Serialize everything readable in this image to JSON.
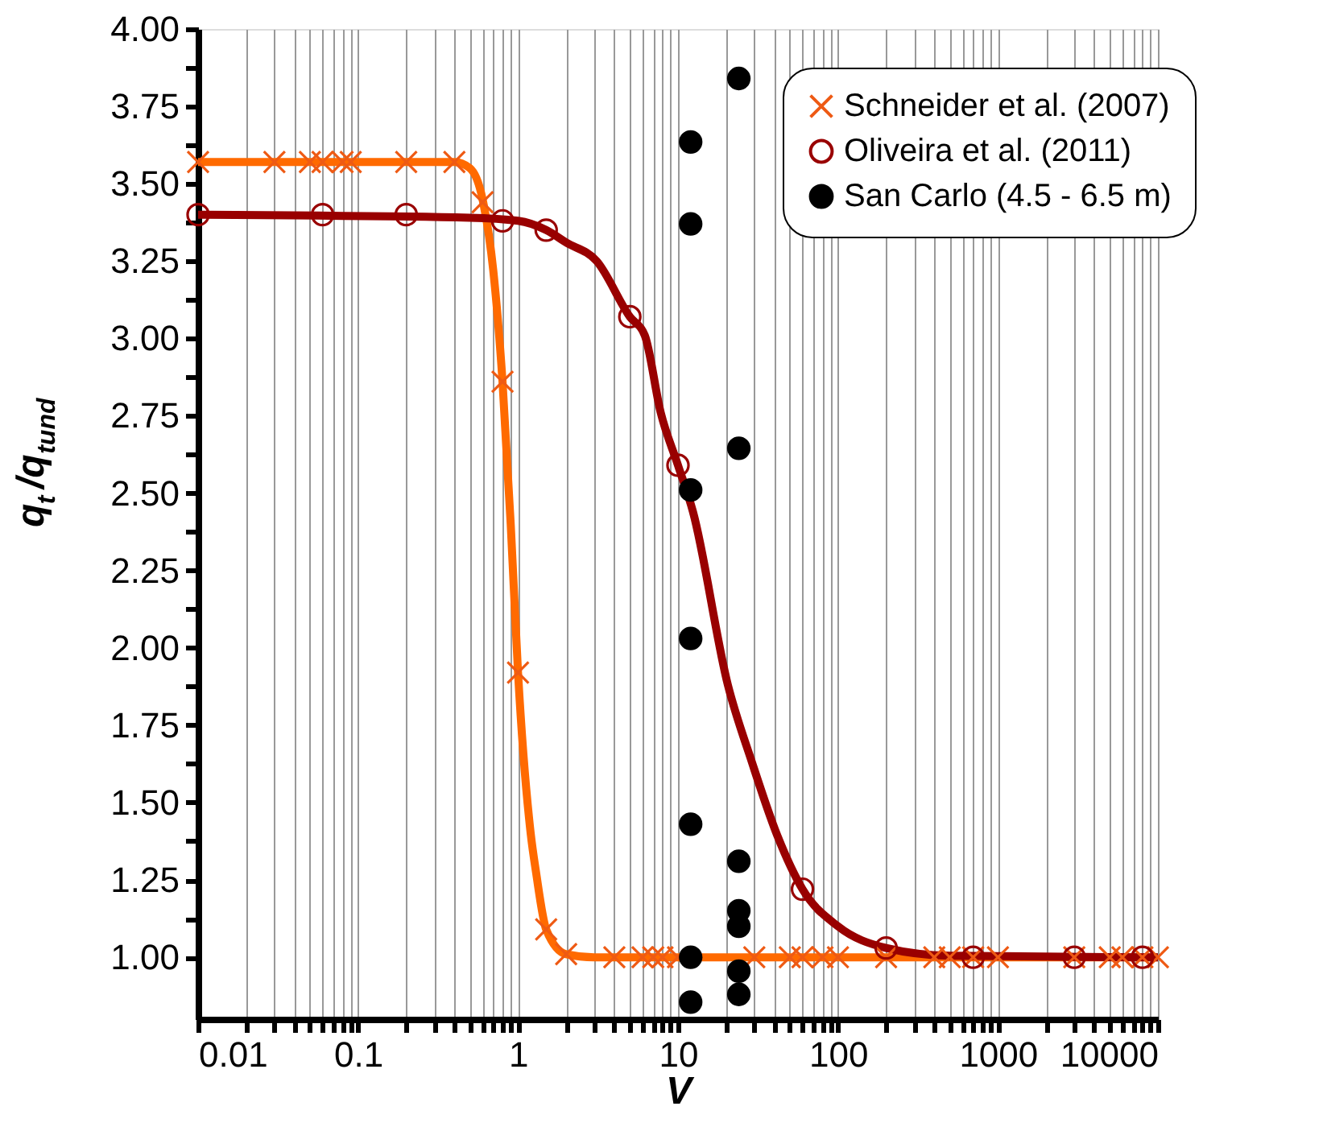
{
  "chart_data": {
    "type": "line",
    "xlabel": "V",
    "ylabel": "q$_{t}$/q$_{tund}$",
    "log": "x",
    "grid": "x",
    "legend": "top right",
    "xlim": [
      0.01,
      10000
    ],
    "ylim": [
      0.8,
      4.0
    ],
    "xticks": [
      0.01,
      {
        "value": 0.02,
        "label": null
      },
      {
        "value": 0.03,
        "label": null
      },
      {
        "value": 0.04,
        "label": null
      },
      {
        "value": 0.05,
        "label": null
      },
      {
        "value": 0.06,
        "label": null
      },
      {
        "value": 0.07,
        "label": null
      },
      {
        "value": 0.08,
        "label": null
      },
      {
        "value": 0.09,
        "label": null
      },
      0.1,
      {
        "value": 0.2,
        "label": null
      },
      {
        "value": 0.3,
        "label": null
      },
      {
        "value": 0.4,
        "label": null
      },
      {
        "value": 0.5,
        "label": null
      },
      {
        "value": 0.6,
        "label": null
      },
      {
        "value": 0.7,
        "label": null
      },
      {
        "value": 0.8,
        "label": null
      },
      {
        "value": 0.9,
        "label": null
      },
      1,
      {
        "value": 2,
        "label": null
      },
      {
        "value": 3,
        "label": null
      },
      {
        "value": 4,
        "label": null
      },
      {
        "value": 5,
        "label": null
      },
      {
        "value": 6,
        "label": null
      },
      {
        "value": 7,
        "label": null
      },
      {
        "value": 8,
        "label": null
      },
      {
        "value": 9,
        "label": null
      },
      10,
      {
        "value": 20,
        "label": null
      },
      {
        "value": 30,
        "label": null
      },
      {
        "value": 40,
        "label": null
      },
      {
        "value": 50,
        "label": null
      },
      {
        "value": 60,
        "label": null
      },
      {
        "value": 70,
        "label": null
      },
      {
        "value": 80,
        "label": null
      },
      {
        "value": 90,
        "label": null
      },
      100,
      {
        "value": 200,
        "label": null
      },
      {
        "value": 300,
        "label": null
      },
      {
        "value": 400,
        "label": null
      },
      {
        "value": 500,
        "label": null
      },
      {
        "value": 600,
        "label": null
      },
      {
        "value": 700,
        "label": null
      },
      {
        "value": 800,
        "label": null
      },
      {
        "value": 900,
        "label": null
      },
      1000,
      {
        "value": 2000,
        "label": null
      },
      {
        "value": 3000,
        "label": null
      },
      {
        "value": 4000,
        "label": null
      },
      {
        "value": 5000,
        "label": null
      },
      {
        "value": 6000,
        "label": null
      },
      {
        "value": 7000,
        "label": null
      },
      {
        "value": 8000,
        "label": null
      },
      {
        "value": 9000,
        "label": null
      },
      10000
    ],
    "yticks": [
      {
        "value": 1,
        "label": "1.00"
      },
      {
        "value": 1.125,
        "label": null
      },
      {
        "value": 1.25,
        "label": "1.25"
      },
      {
        "value": 1.375,
        "label": null
      },
      {
        "value": 1.5,
        "label": "1.50"
      },
      {
        "value": 1.625,
        "label": null
      },
      {
        "value": 1.75,
        "label": "1.75"
      },
      {
        "value": 1.875,
        "label": null
      },
      {
        "value": 2,
        "label": "2.00"
      },
      {
        "value": 2.125,
        "label": null
      },
      {
        "value": 2.25,
        "label": "2.25"
      },
      {
        "value": 2.375,
        "label": null
      },
      {
        "value": 2.5,
        "label": "2.50"
      },
      {
        "value": 2.625,
        "label": null
      },
      {
        "value": 2.75,
        "label": "2.75"
      },
      {
        "value": 2.875,
        "label": null
      },
      {
        "value": 3,
        "label": "3.00"
      },
      {
        "value": 3.125,
        "label": null
      },
      {
        "value": 3.25,
        "label": "3.25"
      },
      {
        "value": 3.375,
        "label": null
      },
      {
        "value": 3.5,
        "label": "3.50"
      },
      {
        "value": 3.625,
        "label": null
      },
      {
        "value": 3.75,
        "label": "3.75"
      },
      {
        "value": 3.875,
        "label": null
      },
      {
        "value": 4,
        "label": "4.00"
      }
    ],
    "series": [
      {
        "type": "line",
        "color": "#ff6a00",
        "marker": "none",
        "x": [
          0.01,
          0.1,
          0.4,
          0.5,
          0.6,
          0.7,
          0.8,
          0.9,
          1.0,
          1.2,
          1.3,
          1.5,
          2,
          3,
          10,
          10000
        ],
        "values": [
          3.57,
          3.57,
          3.57,
          3.55,
          3.45,
          3.22,
          2.86,
          2.4,
          1.92,
          1.4,
          1.27,
          1.09,
          1.01,
          1.0,
          1.0,
          1.0
        ]
      },
      {
        "type": "line",
        "color": "#990000",
        "marker": "none",
        "x": [
          0.01,
          0.5,
          1,
          1.5,
          2,
          3.1,
          5,
          6.2,
          7.8,
          10,
          12.4,
          20.5,
          29,
          42,
          60,
          100,
          200,
          500,
          10000
        ],
        "values": [
          3.4,
          3.39,
          3.38,
          3.35,
          3.31,
          3.25,
          3.07,
          3.01,
          2.76,
          2.59,
          2.44,
          1.88,
          1.63,
          1.39,
          1.22,
          1.1,
          1.03,
          1.005,
          1.0
        ]
      },
      {
        "name": "Schneider et al. (2007)",
        "type": "scatter",
        "marker": "cross",
        "color": "#ee5a14",
        "x": [
          0.01,
          0.03,
          0.05,
          0.06,
          0.08,
          0.09,
          0.2,
          0.4,
          0.6,
          0.8,
          1.0,
          1.5,
          2,
          4,
          6,
          7,
          8,
          10,
          30,
          50,
          60,
          80,
          100,
          200,
          400,
          500,
          700,
          1000,
          3000,
          5000,
          6000,
          8000,
          10000
        ],
        "values": [
          3.57,
          3.57,
          3.57,
          3.57,
          3.57,
          3.57,
          3.57,
          3.57,
          3.44,
          2.86,
          1.92,
          1.09,
          1.01,
          1.0,
          1.0,
          1.0,
          1.0,
          1.0,
          1.0,
          1.0,
          1.0,
          1.0,
          1.0,
          1.0,
          1.0,
          1.0,
          1.0,
          1.0,
          1.0,
          1.0,
          1.0,
          1.0,
          1.0
        ]
      },
      {
        "name": "Oliveira et al. (2011)",
        "type": "scatter",
        "marker": "circle",
        "color": "#990000",
        "x": [
          0.01,
          0.06,
          0.2,
          0.8,
          1.5,
          5,
          10,
          60,
          200,
          700,
          3000,
          8000
        ],
        "values": [
          3.4,
          3.4,
          3.4,
          3.38,
          3.35,
          3.07,
          2.59,
          1.22,
          1.03,
          1.0,
          1.0,
          1.0
        ]
      },
      {
        "name": "San Carlo (4.5 - 6.5 m)",
        "type": "scatter",
        "marker": "circle",
        "color": "#000000",
        "x": [
          12,
          12,
          12,
          12,
          12,
          12,
          12,
          24,
          24,
          24,
          24,
          24,
          24,
          24
        ],
        "values": [
          3.635,
          3.37,
          2.51,
          2.03,
          1.43,
          1.0,
          0.855,
          3.84,
          2.645,
          1.31,
          1.15,
          1.1,
          0.955,
          0.88
        ]
      }
    ]
  }
}
